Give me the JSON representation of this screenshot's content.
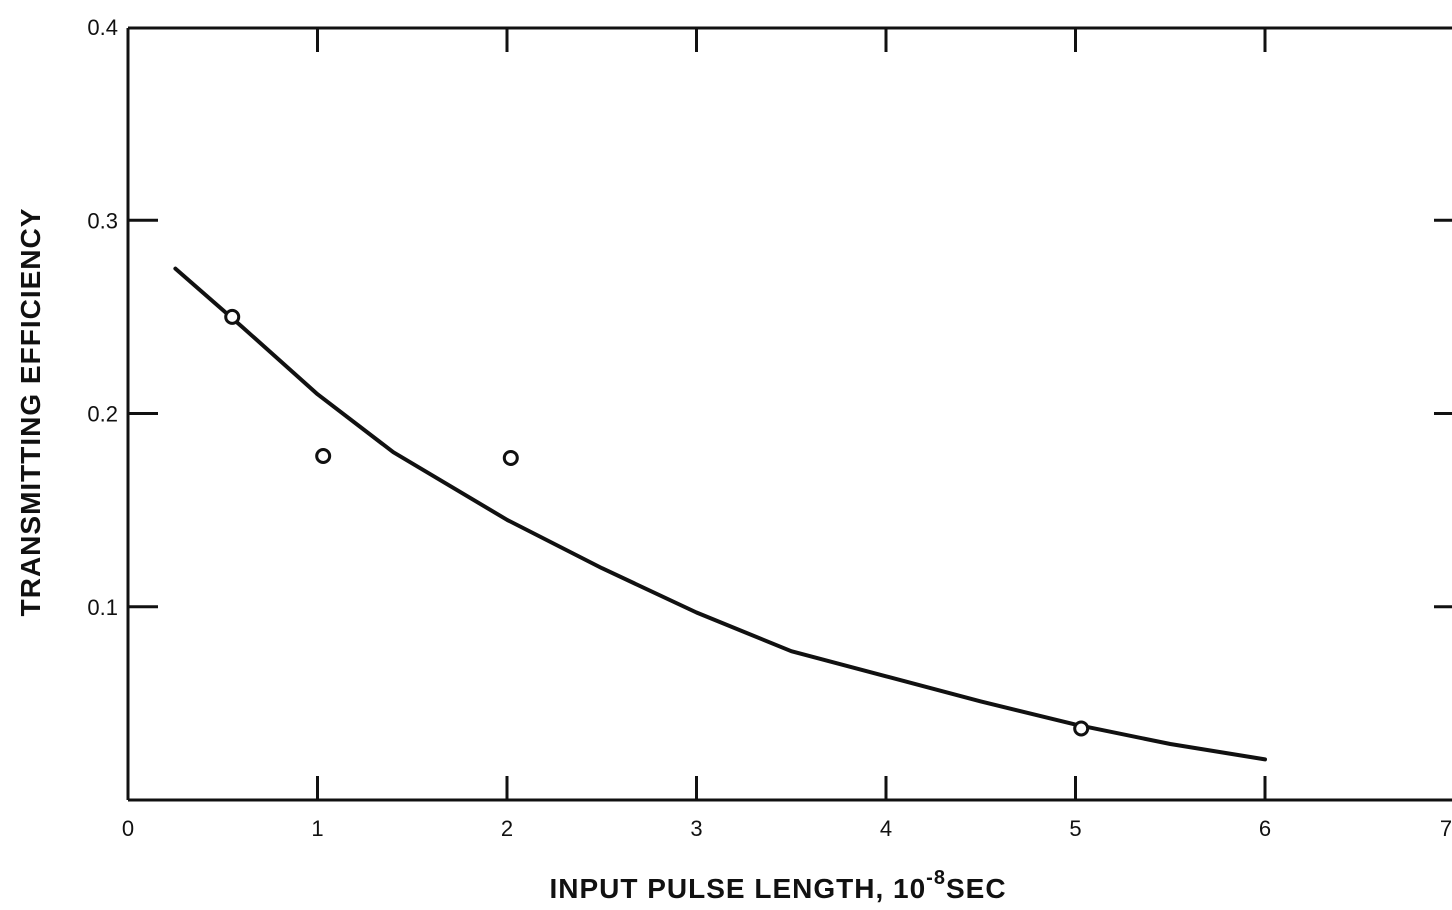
{
  "chart_data": {
    "type": "scatter",
    "title": "",
    "xlabel": "INPUT PULSE LENGTH, 10",
    "xlabel_exponent": "-8",
    "xlabel_unit": "SEC",
    "ylabel": "TRANSMITTING EFFICIENCY",
    "xlim": [
      0,
      7
    ],
    "ylim": [
      0,
      0.4
    ],
    "xticks": [
      0,
      1,
      2,
      3,
      4,
      5,
      6,
      7
    ],
    "xtick_labels": [
      "0",
      "1",
      "2",
      "3",
      "4",
      "5",
      "6",
      "7"
    ],
    "yticks": [
      0.1,
      0.2,
      0.3,
      0.4
    ],
    "ytick_labels": [
      "0.1",
      "0.2",
      "0.3",
      "0.4"
    ],
    "grid": false,
    "series": [
      {
        "kind": "points",
        "marker": "open-circle",
        "x": [
          0.55,
          1.03,
          2.02,
          5.03
        ],
        "y": [
          0.25,
          0.178,
          0.177,
          0.037
        ]
      },
      {
        "kind": "line",
        "x": [
          0.25,
          0.6,
          1.0,
          1.4,
          2.0,
          2.5,
          3.0,
          3.5,
          4.0,
          4.5,
          5.0,
          5.5,
          6.0
        ],
        "y": [
          0.275,
          0.245,
          0.21,
          0.18,
          0.145,
          0.12,
          0.097,
          0.077,
          0.064,
          0.051,
          0.039,
          0.029,
          0.021
        ]
      }
    ]
  }
}
